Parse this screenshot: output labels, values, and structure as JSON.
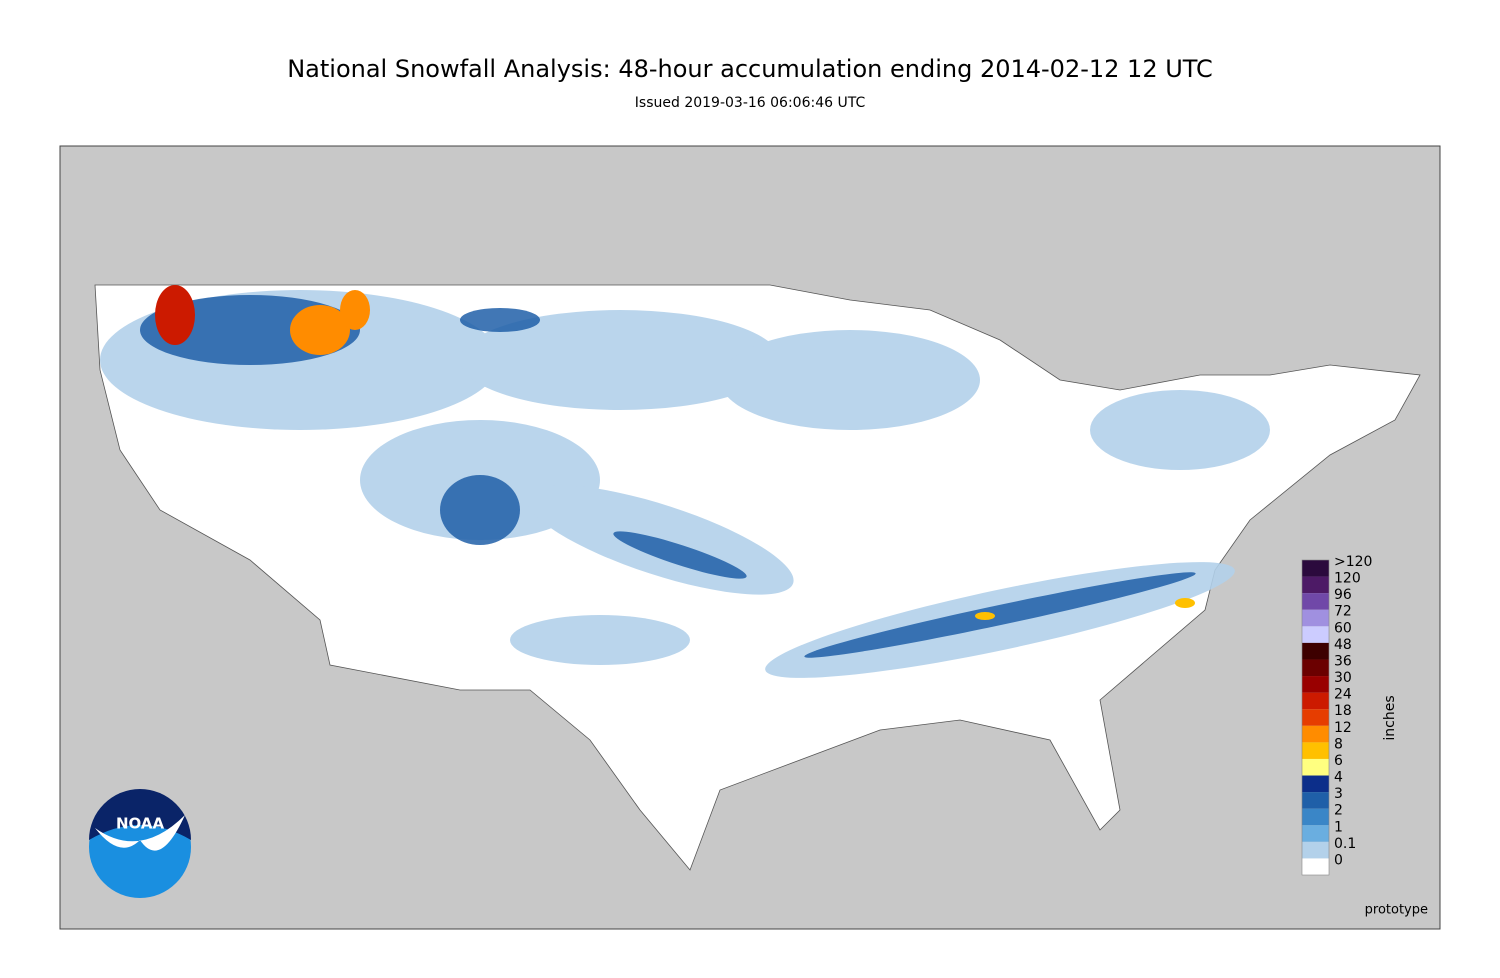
{
  "header": {
    "title": "National Snowfall Analysis: 48-hour accumulation ending 2014-02-12 12 UTC",
    "subtitle": "Issued 2019-03-16 06:06:46 UTC"
  },
  "logo": {
    "text": "NOAA"
  },
  "legend": {
    "unit": "inches",
    "entries": [
      {
        "label": ">120",
        "color": "#2b0a3d"
      },
      {
        "label": "120",
        "color": "#4d1a66"
      },
      {
        "label": "96",
        "color": "#7048a8"
      },
      {
        "label": "72",
        "color": "#a090e0"
      },
      {
        "label": "60",
        "color": "#ccccff"
      },
      {
        "label": "48",
        "color": "#3d0000"
      },
      {
        "label": "36",
        "color": "#6b0000"
      },
      {
        "label": "30",
        "color": "#990000"
      },
      {
        "label": "24",
        "color": "#cc1a00"
      },
      {
        "label": "18",
        "color": "#e63d00"
      },
      {
        "label": "12",
        "color": "#ff8c00"
      },
      {
        "label": "8",
        "color": "#ffc000"
      },
      {
        "label": "6",
        "color": "#ffff80"
      },
      {
        "label": "4",
        "color": "#0c2e8a"
      },
      {
        "label": "3",
        "color": "#1f5fa8"
      },
      {
        "label": "2",
        "color": "#3a86c7"
      },
      {
        "label": "1",
        "color": "#6aaee0"
      },
      {
        "label": "0.1",
        "color": "#b3d1ea"
      },
      {
        "label": "0",
        "color": "#ffffff"
      }
    ]
  },
  "footer": {
    "note": "prototype"
  }
}
